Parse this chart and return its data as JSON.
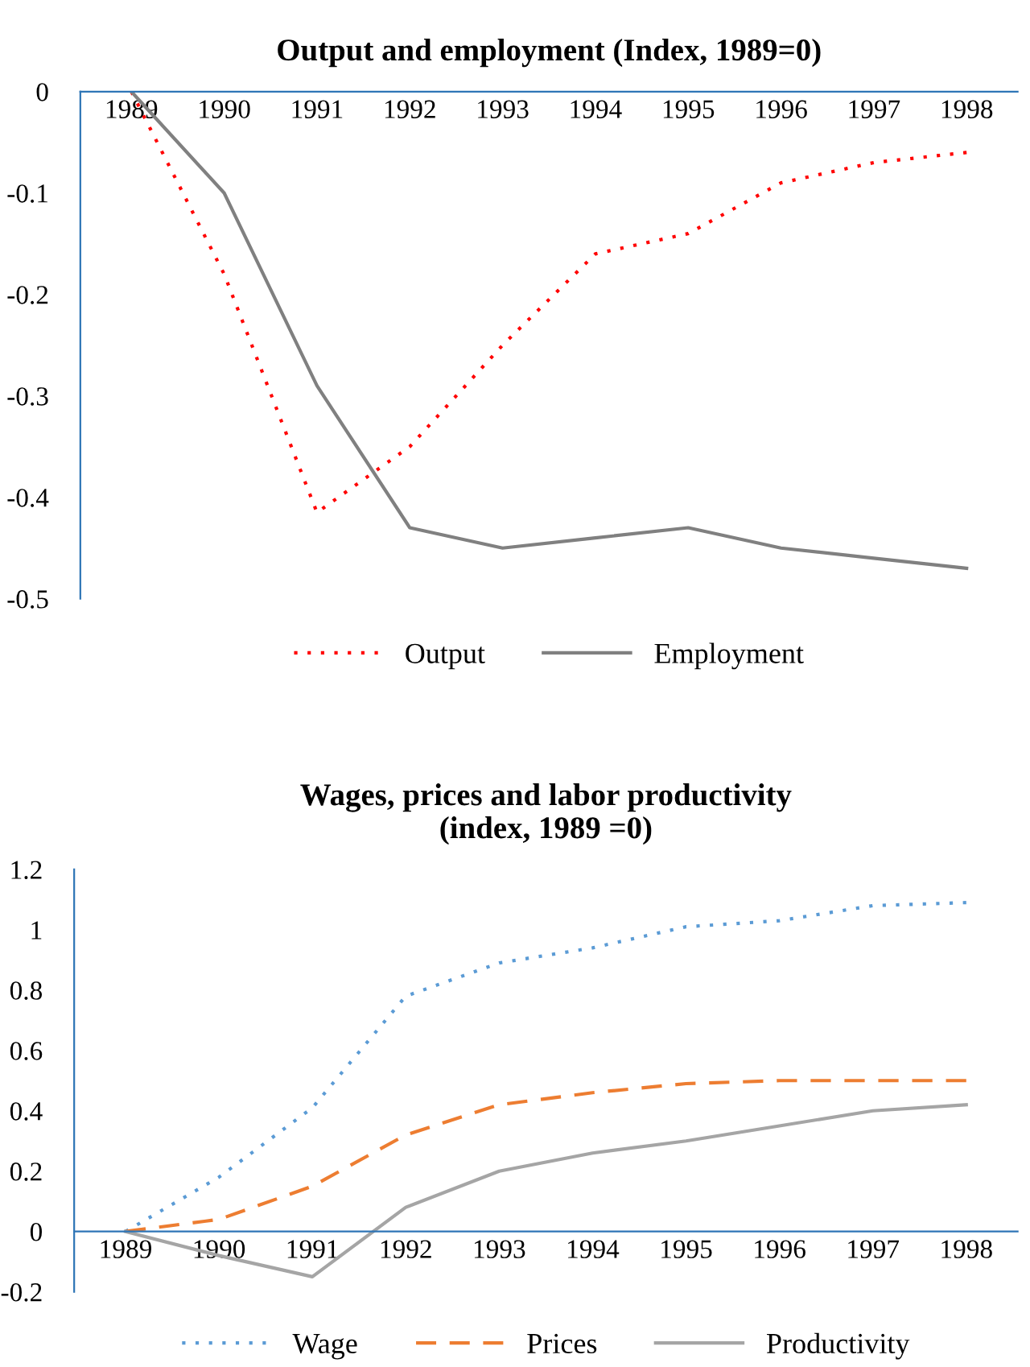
{
  "chart_data": [
    {
      "type": "line",
      "title": "Output and employment (Index, 1989=0)",
      "categories": [
        "1989",
        "1990",
        "1991",
        "1992",
        "1993",
        "1994",
        "1995",
        "1996",
        "1997",
        "1998"
      ],
      "series": [
        {
          "name": "Output",
          "color": "#ff0000",
          "line_style": "dotted",
          "values": [
            0,
            -0.18,
            -0.415,
            -0.35,
            -0.25,
            -0.16,
            -0.14,
            -0.09,
            -0.07,
            -0.06
          ]
        },
        {
          "name": "Employment",
          "color": "#808080",
          "line_style": "solid",
          "values": [
            0,
            -0.1,
            -0.29,
            -0.43,
            -0.45,
            -0.44,
            -0.43,
            -0.45,
            -0.46,
            -0.47
          ]
        }
      ],
      "ylim": [
        -0.5,
        0
      ],
      "yticks": [
        {
          "value": 0,
          "label": "0"
        },
        {
          "value": -0.1,
          "label": "-0.1"
        },
        {
          "value": -0.2,
          "label": "-0.2"
        },
        {
          "value": -0.3,
          "label": "-0.3"
        },
        {
          "value": -0.4,
          "label": "-0.4"
        },
        {
          "value": -0.5,
          "label": "-0.5"
        }
      ],
      "grid": false,
      "legend": "bottom",
      "marker": "none"
    },
    {
      "type": "line",
      "title": "Wages, prices and labor productivity\n(index, 1989 =0)",
      "categories": [
        "1989",
        "1990",
        "1991",
        "1992",
        "1993",
        "1994",
        "1995",
        "1996",
        "1997",
        "1998"
      ],
      "series": [
        {
          "name": "Wage",
          "color": "#5b9bd5",
          "line_style": "dotted",
          "values": [
            0,
            0.18,
            0.41,
            0.78,
            0.89,
            0.94,
            1.01,
            1.03,
            1.08,
            1.09
          ]
        },
        {
          "name": "Prices",
          "color": "#ed7d31",
          "line_style": "dashed",
          "values": [
            0,
            0.04,
            0.15,
            0.32,
            0.42,
            0.46,
            0.49,
            0.5,
            0.5,
            0.5
          ]
        },
        {
          "name": "Productivity",
          "color": "#a5a5a5",
          "line_style": "solid",
          "values": [
            0,
            -0.08,
            -0.15,
            0.08,
            0.2,
            0.26,
            0.3,
            0.35,
            0.4,
            0.42
          ]
        }
      ],
      "ylim": [
        -0.2,
        1.2
      ],
      "yticks": [
        {
          "value": -0.2,
          "label": "-0.2"
        },
        0,
        0.2,
        0.4,
        0.6,
        0.8,
        1,
        1.2
      ],
      "grid": false,
      "legend": "bottom",
      "marker": "none"
    }
  ]
}
